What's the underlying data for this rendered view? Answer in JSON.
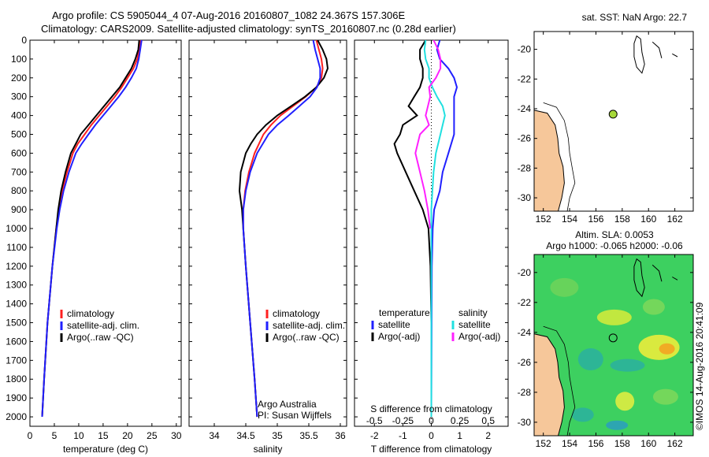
{
  "header": {
    "line1": "Argo profile: CS 5905044_4 07-Aug-2016 20160807_1082 24.367S 157.306E",
    "line2": "Climatology: CARS2009. Satellite-adjusted climatology: synTS_20160807.nc (0.28d earlier)"
  },
  "colors": {
    "climatology": "#ff2020",
    "satellite": "#2020ff",
    "argo": "#000000",
    "s_satellite": "#20e0e0",
    "s_argo": "#ff20ff",
    "land": "#f6c79a",
    "sst_dot": "#a6d83a",
    "sla_bg": "#3dd060"
  },
  "chart_data": [
    {
      "type": "line",
      "id": "temperature",
      "xlabel": "temperature (deg C)",
      "xlim": [
        0,
        31
      ],
      "xticks": [
        0,
        5,
        10,
        15,
        20,
        25,
        30
      ],
      "ylim": [
        0,
        2050
      ],
      "yticks": [
        0,
        100,
        200,
        300,
        400,
        500,
        600,
        700,
        800,
        900,
        1000,
        1100,
        1200,
        1300,
        1400,
        1500,
        1600,
        1700,
        1800,
        1900,
        2000
      ],
      "legend": [
        "climatology",
        "satellite-adj. clim.",
        "Argo(..raw -QC)"
      ],
      "series": [
        {
          "name": "climatology",
          "color": "#ff2020",
          "depth": [
            0,
            50,
            100,
            150,
            200,
            250,
            300,
            350,
            400,
            450,
            500,
            550,
            600,
            700,
            800,
            900,
            1000,
            1200,
            1500,
            1800,
            2000
          ],
          "values": [
            22.6,
            22.4,
            22.0,
            21.2,
            20.0,
            18.8,
            17.4,
            15.8,
            14.2,
            12.6,
            11.2,
            9.8,
            8.8,
            7.6,
            6.6,
            5.9,
            5.4,
            4.6,
            3.6,
            2.9,
            2.5
          ]
        },
        {
          "name": "satellite-adj. clim.",
          "color": "#2020ff",
          "depth": [
            0,
            50,
            100,
            150,
            200,
            250,
            300,
            350,
            400,
            450,
            500,
            550,
            600,
            700,
            800,
            900,
            1000,
            1200,
            1500,
            1800,
            2000
          ],
          "values": [
            22.9,
            22.6,
            22.3,
            21.8,
            20.8,
            19.6,
            18.2,
            16.6,
            15.0,
            13.4,
            12.0,
            10.6,
            9.4,
            8.0,
            6.9,
            6.1,
            5.5,
            4.6,
            3.6,
            2.9,
            2.5
          ]
        },
        {
          "name": "Argo(..raw -QC)",
          "color": "#000000",
          "depth": [
            0,
            50,
            100,
            150,
            200,
            250,
            300,
            350,
            400,
            450,
            500,
            550,
            600,
            700,
            800,
            900,
            1000,
            1200,
            1500,
            1800,
            2000
          ],
          "values": [
            22.4,
            22.2,
            21.6,
            20.8,
            19.6,
            18.4,
            16.8,
            15.2,
            13.6,
            12.0,
            10.4,
            9.4,
            8.4,
            7.3,
            6.4,
            5.8,
            5.4,
            4.6,
            3.6,
            2.9,
            2.5
          ]
        }
      ]
    },
    {
      "type": "line",
      "id": "salinity",
      "xlabel": "salinity",
      "xlim": [
        33.6,
        36.1
      ],
      "xticks": [
        34,
        34.5,
        35,
        35.5,
        36
      ],
      "legend": [
        "climatology",
        "satellite-adj. clim.",
        "Argo(..raw -QC)"
      ],
      "annotation": [
        "Argo Australia",
        "PI: Susan Wijffels"
      ],
      "series": [
        {
          "name": "climatology",
          "color": "#ff2020",
          "depth": [
            0,
            50,
            100,
            150,
            200,
            250,
            300,
            350,
            400,
            450,
            500,
            600,
            700,
            800,
            900,
            1000,
            1200,
            1500,
            1800,
            2000
          ],
          "values": [
            35.62,
            35.66,
            35.7,
            35.72,
            35.7,
            35.62,
            35.45,
            35.25,
            35.05,
            34.9,
            34.78,
            34.64,
            34.55,
            34.49,
            34.46,
            34.46,
            34.5,
            34.57,
            34.64,
            34.68
          ]
        },
        {
          "name": "satellite-adj. clim.",
          "color": "#2020ff",
          "depth": [
            0,
            50,
            100,
            150,
            200,
            250,
            300,
            350,
            400,
            450,
            500,
            600,
            700,
            800,
            900,
            1000,
            1200,
            1500,
            1800,
            2000
          ],
          "values": [
            35.57,
            35.6,
            35.64,
            35.68,
            35.68,
            35.63,
            35.52,
            35.35,
            35.18,
            35.0,
            34.86,
            34.68,
            34.57,
            34.5,
            34.46,
            34.46,
            34.5,
            34.57,
            34.64,
            34.68
          ]
        },
        {
          "name": "Argo(..raw -QC)",
          "color": "#000000",
          "depth": [
            0,
            50,
            100,
            150,
            200,
            250,
            300,
            350,
            400,
            450,
            500,
            550,
            600,
            700,
            800,
            900,
            1000,
            1200,
            1500,
            1800,
            2000
          ],
          "values": [
            35.64,
            35.72,
            35.78,
            35.8,
            35.74,
            35.62,
            35.44,
            35.22,
            35.0,
            34.82,
            34.68,
            34.58,
            34.5,
            34.42,
            34.4,
            34.44,
            34.46,
            34.5,
            34.57,
            34.64,
            34.68
          ]
        }
      ]
    },
    {
      "type": "line",
      "id": "differences",
      "xlabel": "T difference from climatology",
      "xlabel2": "S difference from climatology",
      "xlim": [
        -2.7,
        2.7
      ],
      "xticks": [
        -2,
        -1,
        0,
        1,
        2
      ],
      "s_ticks": [
        -0.5,
        -0.25,
        0,
        0.25,
        0.5
      ],
      "legend_t_title": "temperature",
      "legend_s_title": "salinity",
      "legend_t": [
        "satellite",
        "Argo(-adj)"
      ],
      "legend_s": [
        "satellite",
        "Argo(-adj)"
      ],
      "series": [
        {
          "name": "T satellite",
          "color": "#2020ff",
          "depth": [
            0,
            50,
            100,
            150,
            200,
            250,
            300,
            400,
            500,
            600,
            700,
            800,
            900,
            1000,
            1200,
            1500,
            2000
          ],
          "values": [
            0.3,
            0.2,
            0.3,
            0.6,
            0.8,
            0.9,
            0.8,
            0.8,
            0.8,
            0.6,
            0.4,
            0.3,
            0.1,
            0.05,
            0.02,
            0.01,
            0
          ]
        },
        {
          "name": "T Argo(-adj)",
          "color": "#000000",
          "depth": [
            0,
            50,
            100,
            150,
            200,
            250,
            300,
            350,
            400,
            450,
            500,
            550,
            600,
            700,
            800,
            900,
            1000,
            1200,
            1500,
            2000
          ],
          "values": [
            -0.2,
            -0.4,
            -0.4,
            -0.3,
            -0.3,
            -0.4,
            -0.6,
            -0.8,
            -0.5,
            -1.0,
            -1.1,
            -1.3,
            -1.2,
            -0.9,
            -0.6,
            -0.3,
            -0.1,
            -0.03,
            0,
            0
          ]
        },
        {
          "name": "S satellite",
          "color": "#20e0e0",
          "depth": [
            0,
            50,
            100,
            150,
            200,
            250,
            300,
            350,
            400,
            450,
            500,
            600,
            700,
            800,
            900,
            1000,
            1200,
            1500,
            2000
          ],
          "values": [
            -0.05,
            -0.06,
            -0.05,
            -0.02,
            -0.02,
            0.01,
            0.05,
            0.1,
            0.12,
            0.1,
            0.08,
            0.04,
            0.02,
            0.01,
            0,
            0,
            0,
            0,
            0
          ]
        },
        {
          "name": "S Argo(-adj)",
          "color": "#ff20ff",
          "depth": [
            0,
            50,
            100,
            150,
            200,
            250,
            300,
            350,
            400,
            450,
            500,
            600,
            700,
            800,
            900,
            1000
          ],
          "values": [
            0.02,
            0.06,
            0.08,
            0.08,
            0.04,
            -0.02,
            -0.01,
            -0.03,
            -0.05,
            -0.02,
            -0.1,
            -0.14,
            -0.1,
            -0.06,
            -0.03,
            -0.01
          ]
        }
      ]
    },
    {
      "type": "map",
      "id": "sst",
      "title": "sat. SST: NaN Argo: 22.7",
      "lon_range": [
        151.3,
        163.4
      ],
      "lat_range": [
        -30.9,
        -18.8
      ],
      "xticks": [
        152,
        154,
        156,
        158,
        160,
        162
      ],
      "yticks": [
        -20,
        -22,
        -24,
        -26,
        -28,
        -30
      ],
      "float_position": {
        "lon": 157.306,
        "lat": -24.367
      }
    },
    {
      "type": "map",
      "id": "sla",
      "title": "Altim. SLA: 0.0053",
      "subtitle": "Argo h1000: -0.065 h2000: -0.06",
      "lon_range": [
        151.3,
        163.4
      ],
      "lat_range": [
        -30.9,
        -18.8
      ],
      "xticks": [
        152,
        154,
        156,
        158,
        160,
        162
      ],
      "yticks": [
        -20,
        -22,
        -24,
        -26,
        -28,
        -30
      ],
      "float_position": {
        "lon": 157.306,
        "lat": -24.367
      }
    }
  ],
  "credit": "©IMOS 14-Aug-2016 20:41:09"
}
